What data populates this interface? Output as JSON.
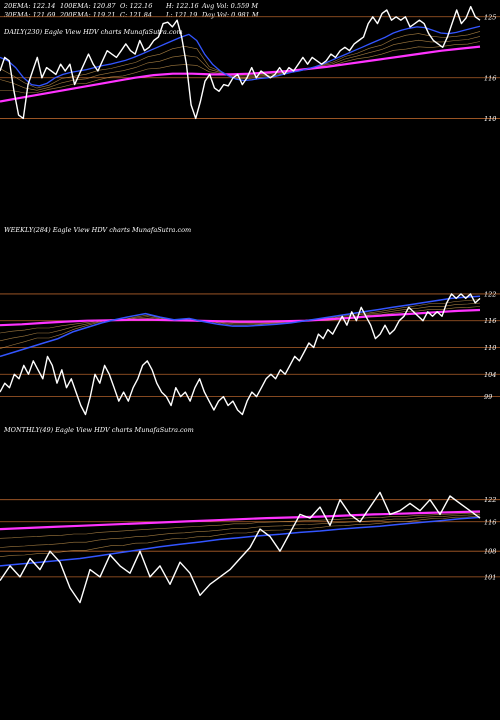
{
  "header": {
    "row1": [
      "20EMA: 122.14",
      "100EMA: 120.87",
      "O: 122.16",
      "H: 122.16",
      "Avg Vol: 0.559 M"
    ],
    "row2": [
      "30EMA: 121.69",
      "200EMA: 119.21",
      "C: 121.84",
      "L: 121.19",
      "Day Vol: 0.981 M"
    ]
  },
  "colors": {
    "background": "#000000",
    "price": "#ffffff",
    "ema_short": "#3355ff",
    "ema_long": "#ff33ff",
    "grid": "#b0602a",
    "ema_aux": "#c89850"
  },
  "chart_data": [
    {
      "type": "line",
      "title": "DAILY(230) Eagle View HDV charts MunafaSutra.com",
      "ylim": [
        108,
        126
      ],
      "yticks": [
        {
          "value": 125,
          "label": "125"
        },
        {
          "value": 116,
          "label": "116"
        },
        {
          "value": 110,
          "label": "110"
        }
      ],
      "series": [
        {
          "role": "price",
          "values": [
            117,
            119,
            118.5,
            114,
            110.5,
            110,
            115,
            117,
            119,
            116,
            117.5,
            117,
            116.5,
            118,
            117,
            118,
            115,
            116.5,
            118,
            119.5,
            118,
            117,
            118.5,
            120,
            119.5,
            119,
            120,
            121,
            120,
            119.5,
            121.5,
            120,
            120.5,
            121.5,
            122,
            124,
            124.2,
            123.5,
            124.5,
            122,
            118,
            112,
            110,
            112.5,
            115.5,
            116.5,
            114.5,
            114,
            115,
            114.8,
            116,
            116.5,
            115,
            116,
            117.5,
            116,
            117,
            116.5,
            116,
            116.5,
            117.5,
            116.5,
            117.5,
            117,
            118,
            119,
            118,
            119,
            118.5,
            118,
            118.5,
            119.5,
            119,
            120,
            120.5,
            120,
            121,
            121.5,
            122,
            124,
            125,
            124,
            125.5,
            126,
            124.5,
            125,
            124.5,
            125,
            123.5,
            124,
            124.5,
            124,
            122.5,
            121.5,
            121,
            120.5,
            122,
            124,
            126,
            124,
            124.8,
            126.5,
            125,
            124.5
          ]
        },
        {
          "role": "ema-20",
          "values": [
            119,
            118.5,
            117.5,
            116,
            115,
            114.8,
            115.2,
            116,
            116.5,
            116.8,
            117,
            117.2,
            117.5,
            117.8,
            118,
            118.3,
            118.6,
            119,
            119.5,
            120,
            120.5,
            121,
            121.5,
            122,
            122.4,
            121.5,
            119.5,
            118,
            117,
            116.3,
            115.8,
            115.6,
            115.7,
            115.9,
            116,
            116.2,
            116.5,
            116.8,
            117,
            117.3,
            117.6,
            118,
            118.5,
            119,
            119.5,
            120,
            120.5,
            121,
            121.5,
            122,
            122.6,
            123,
            123.3,
            123.5,
            123.4,
            123,
            122.6,
            122.5,
            122.7,
            123,
            123.3,
            123.6
          ]
        },
        {
          "role": "ema-200",
          "values": [
            112.5,
            113,
            113.5,
            114,
            114.5,
            115,
            115.5,
            116,
            116.4,
            116.6,
            116.6,
            116.5,
            116.5,
            116.6,
            116.8,
            117,
            117.3,
            117.6,
            118,
            118.4,
            118.8,
            119.2,
            119.6,
            120,
            120.3,
            120.6
          ]
        }
      ]
    },
    {
      "type": "line",
      "title": "WEEKLY(284) Eagle View HDV charts MunafaSutra.com",
      "ylim": [
        96,
        124
      ],
      "yticks": [
        {
          "value": 122,
          "label": "122"
        },
        {
          "value": 116,
          "label": "116"
        },
        {
          "value": 110,
          "label": "110"
        },
        {
          "value": 104,
          "label": "104"
        },
        {
          "value": 99,
          "label": "99"
        }
      ],
      "series": [
        {
          "role": "price",
          "values": [
            100,
            102,
            101,
            104,
            103,
            106,
            104,
            107,
            105,
            103,
            108,
            106,
            102,
            105,
            101,
            103,
            100,
            97,
            95,
            99,
            104,
            102,
            106,
            104,
            101,
            98,
            100,
            98,
            101,
            103,
            106,
            107,
            105,
            102,
            100,
            99,
            97,
            101,
            99,
            100,
            98,
            101,
            103,
            100,
            98,
            96,
            98,
            99,
            97,
            98,
            96,
            95,
            98,
            100,
            99,
            101,
            103,
            104,
            103,
            105,
            104,
            106,
            108,
            107,
            109,
            111,
            110,
            113,
            112,
            114,
            113,
            115,
            117,
            115,
            118,
            116,
            119,
            117,
            115,
            112,
            113,
            115,
            113,
            114,
            116,
            117,
            119,
            118,
            117,
            116,
            118,
            117,
            118,
            117,
            120,
            122,
            121,
            122,
            121,
            122,
            120,
            121
          ]
        },
        {
          "role": "ema-short",
          "values": [
            108,
            109,
            110,
            111,
            112,
            113.5,
            114.5,
            115.5,
            116.3,
            117,
            117.6,
            116.8,
            116.2,
            116.5,
            115.8,
            115.2,
            114.8,
            114.8,
            115,
            115.2,
            115.5,
            116,
            116.5,
            117,
            117.5,
            118,
            118.5,
            119,
            119.5,
            120,
            120.5,
            121,
            121.3,
            121.5
          ]
        },
        {
          "role": "ema-long",
          "values": [
            115,
            115.2,
            115.5,
            115.8,
            116,
            116.1,
            116.2,
            116.2,
            116.1,
            116,
            115.9,
            115.8,
            115.8,
            115.9,
            116,
            116.3,
            116.6,
            117,
            117.3,
            117.6,
            117.9,
            118.2,
            118.4
          ]
        }
      ]
    },
    {
      "type": "line",
      "title": "MONTHLY(49) Eagle View HDV charts MunafaSutra.com",
      "ylim": [
        92,
        126
      ],
      "yticks": [
        {
          "value": 122,
          "label": "122"
        },
        {
          "value": 116,
          "label": "116"
        },
        {
          "value": 108,
          "label": "108"
        },
        {
          "value": 101,
          "label": "101"
        }
      ],
      "series": [
        {
          "role": "price",
          "values": [
            100,
            104,
            101,
            106,
            103,
            108,
            105,
            98,
            94,
            103,
            101,
            107,
            104,
            102,
            108,
            101,
            104,
            99,
            105,
            102,
            96,
            99,
            101,
            103,
            106,
            109,
            114,
            112,
            108,
            113,
            118,
            117,
            120,
            115,
            122,
            118,
            116,
            120,
            124,
            118,
            119,
            121,
            119,
            122,
            118,
            123,
            121,
            119,
            117
          ]
        },
        {
          "role": "ema-short",
          "values": [
            104,
            104.5,
            105,
            105.5,
            106,
            106.8,
            107.6,
            108.4,
            109.2,
            109.9,
            110.5,
            111.2,
            111.7,
            112.2,
            112.6,
            113.1,
            113.5,
            114,
            114.4,
            114.8,
            115.3,
            115.8,
            116.3,
            116.8,
            117.2
          ]
        },
        {
          "role": "ema-long",
          "values": [
            114,
            114.3,
            114.6,
            114.9,
            115.2,
            115.5,
            115.8,
            116.1,
            116.4,
            116.7,
            117,
            117.2,
            117.4,
            117.7,
            118,
            118.2,
            118.4,
            118.6,
            118.8
          ]
        }
      ]
    }
  ]
}
